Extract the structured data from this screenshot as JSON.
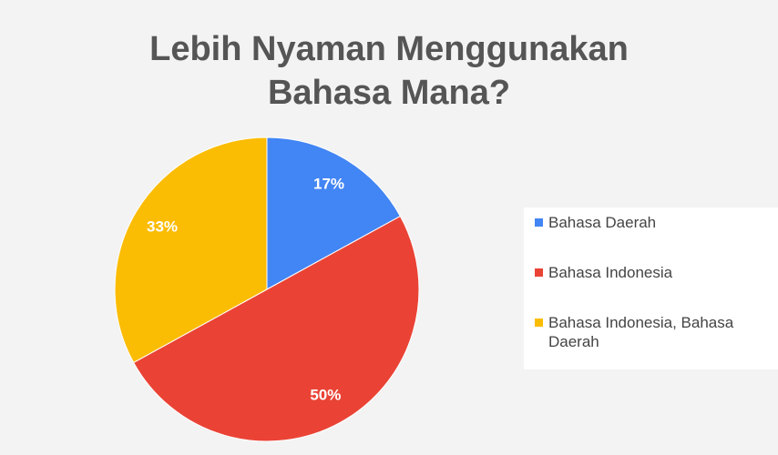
{
  "chart_data": {
    "type": "pie",
    "title": "Lebih Nyaman Menggunakan Bahasa Mana?",
    "categories": [
      "Bahasa Daerah",
      "Bahasa Indonesia",
      "Bahasa Indonesia, Bahasa Daerah"
    ],
    "values": [
      17,
      50,
      33
    ],
    "value_labels": [
      "17%",
      "50%",
      "33%"
    ],
    "colors": [
      "#4285f4",
      "#ea4335",
      "#fbbc04"
    ],
    "legend": "right"
  }
}
